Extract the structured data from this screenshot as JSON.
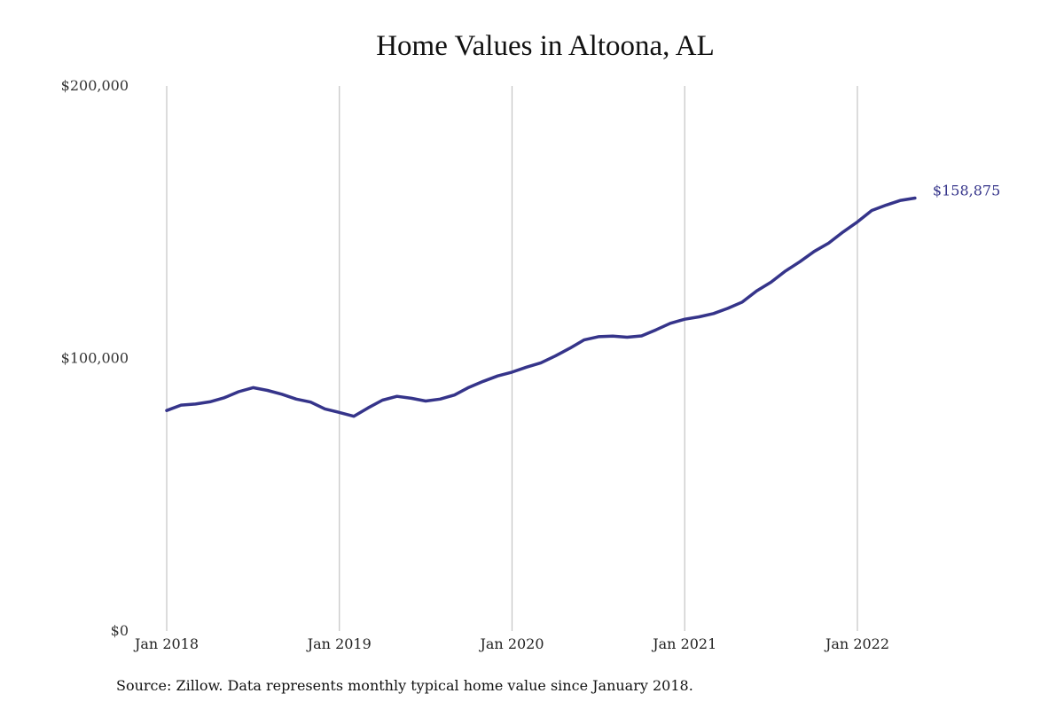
{
  "chart_data": {
    "type": "line",
    "title": "Home Values in Altoona, AL",
    "x_ticks": [
      {
        "x": "2018-01",
        "label": "Jan 2018"
      },
      {
        "x": "2019-01",
        "label": "Jan 2019"
      },
      {
        "x": "2020-01",
        "label": "Jan 2020"
      },
      {
        "x": "2021-01",
        "label": "Jan 2021"
      },
      {
        "x": "2022-01",
        "label": "Jan 2022"
      }
    ],
    "y_ticks": [
      {
        "value": 0,
        "label": "$0"
      },
      {
        "value": 100000,
        "label": "$100,000"
      },
      {
        "value": 200000,
        "label": "$200,000"
      }
    ],
    "ylim": [
      0,
      200000
    ],
    "xlim": [
      "2018-01",
      "2022-05"
    ],
    "grid": "vertical lines at x ticks",
    "series": [
      {
        "color": "#35348a",
        "x": [
          "2018-01",
          "2018-02",
          "2018-03",
          "2018-04",
          "2018-05",
          "2018-06",
          "2018-07",
          "2018-08",
          "2018-09",
          "2018-10",
          "2018-11",
          "2018-12",
          "2019-01",
          "2019-02",
          "2019-03",
          "2019-04",
          "2019-05",
          "2019-06",
          "2019-07",
          "2019-08",
          "2019-09",
          "2019-10",
          "2019-11",
          "2019-12",
          "2020-01",
          "2020-02",
          "2020-03",
          "2020-04",
          "2020-05",
          "2020-06",
          "2020-07",
          "2020-08",
          "2020-09",
          "2020-10",
          "2020-11",
          "2020-12",
          "2021-01",
          "2021-02",
          "2021-03",
          "2021-04",
          "2021-05",
          "2021-06",
          "2021-07",
          "2021-08",
          "2021-09",
          "2021-10",
          "2021-11",
          "2021-12",
          "2022-01",
          "2022-02",
          "2022-03",
          "2022-04",
          "2022-05"
        ],
        "values": [
          80900,
          82900,
          83300,
          84100,
          85600,
          87800,
          89300,
          88300,
          86900,
          85100,
          84000,
          81500,
          80200,
          78800,
          81900,
          84700,
          86100,
          85400,
          84400,
          85100,
          86600,
          89400,
          91600,
          93600,
          95000,
          96800,
          98400,
          100900,
          103700,
          106800,
          108000,
          108200,
          107800,
          108300,
          110500,
          112900,
          114400,
          115300,
          116500,
          118400,
          120700,
          124800,
          128000,
          132100,
          135500,
          139300,
          142300,
          146400,
          150100,
          154300,
          156300,
          158000,
          158875
        ]
      }
    ],
    "annotations": [
      {
        "x": "2022-05",
        "value": 158875,
        "text": "$158,875"
      }
    ],
    "source": "Source: Zillow. Data represents monthly typical home value since January 2018."
  }
}
